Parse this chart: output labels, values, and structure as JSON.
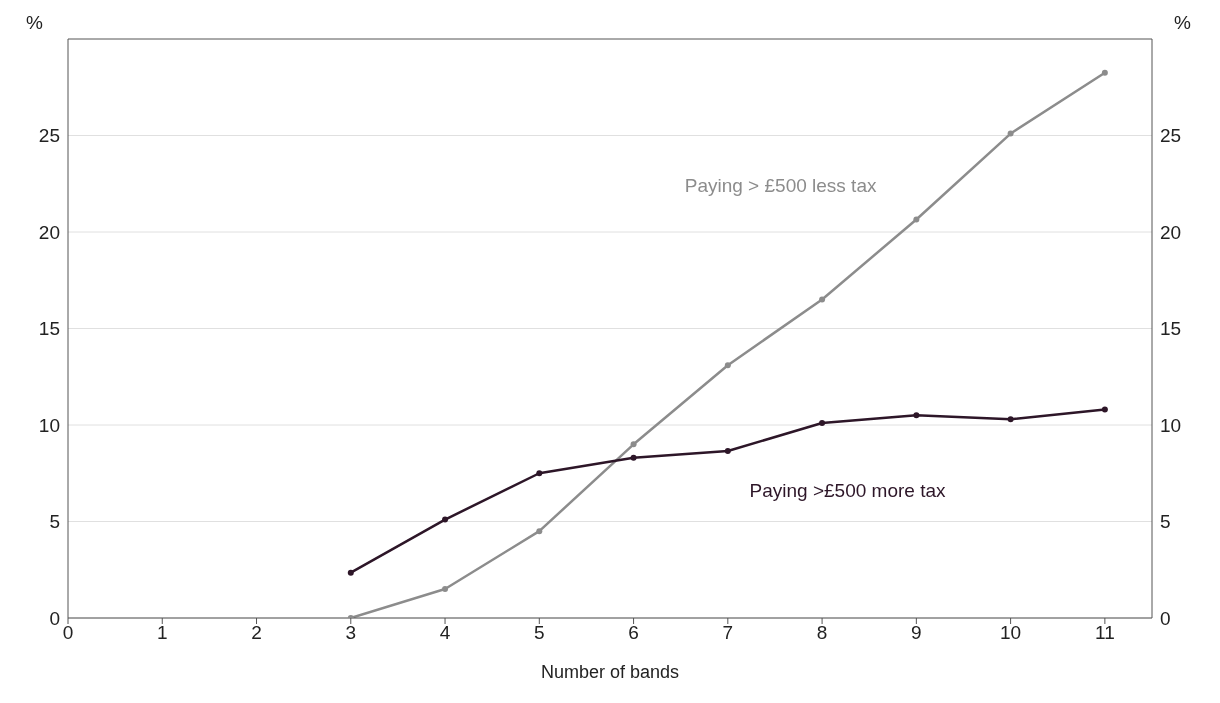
{
  "chart_data": {
    "type": "line",
    "xlabel": "Number of bands",
    "ylabel": "%",
    "y2label": "%",
    "x": [
      3,
      4,
      5,
      6,
      7,
      8,
      9,
      10,
      11
    ],
    "series": [
      {
        "name": "Paying > £500 less tax",
        "color": "#8c8c8c",
        "values": [
          0,
          1.5,
          4.5,
          9.0,
          13.1,
          16.5,
          20.65,
          25.1,
          28.25
        ]
      },
      {
        "name": "Paying >£500 more tax",
        "color": "#2d1628",
        "values": [
          2.35,
          5.1,
          7.5,
          8.3,
          8.65,
          10.1,
          10.5,
          10.3,
          10.8
        ]
      }
    ],
    "xlim": [
      0,
      11.5
    ],
    "xticks": [
      0,
      1,
      2,
      3,
      4,
      5,
      6,
      7,
      8,
      9,
      10,
      11
    ],
    "ylim": [
      0,
      30
    ],
    "yticks": [
      0,
      5,
      10,
      15,
      20,
      25
    ],
    "y2lim": [
      0,
      30
    ],
    "y2ticks": [
      0,
      5,
      10,
      15,
      20,
      25
    ],
    "grid": "y",
    "marker": "circle",
    "line_style": "solid"
  }
}
